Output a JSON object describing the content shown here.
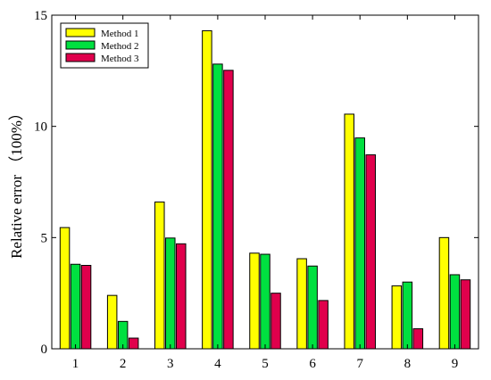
{
  "chart_data": {
    "type": "bar",
    "title": "",
    "xlabel": "",
    "ylabel": "Relative error （100%）",
    "ylim": [
      0,
      15
    ],
    "yticks": [
      0,
      5,
      10,
      15
    ],
    "categories": [
      "1",
      "2",
      "3",
      "4",
      "5",
      "6",
      "7",
      "8",
      "9"
    ],
    "grid": false,
    "legend": "top-left",
    "series": [
      {
        "name": "Method 1",
        "color": "#ffff00",
        "values": [
          5.45,
          2.4,
          6.6,
          14.3,
          4.3,
          4.05,
          10.55,
          2.83,
          5.0
        ]
      },
      {
        "name": "Method 2",
        "color": "#00e040",
        "values": [
          3.8,
          1.23,
          4.98,
          12.8,
          4.25,
          3.72,
          9.48,
          3.0,
          3.33
        ]
      },
      {
        "name": "Method 3",
        "color": "#e0004c",
        "values": [
          3.75,
          0.48,
          4.72,
          12.52,
          2.5,
          2.17,
          8.72,
          0.9,
          3.1
        ]
      }
    ]
  }
}
